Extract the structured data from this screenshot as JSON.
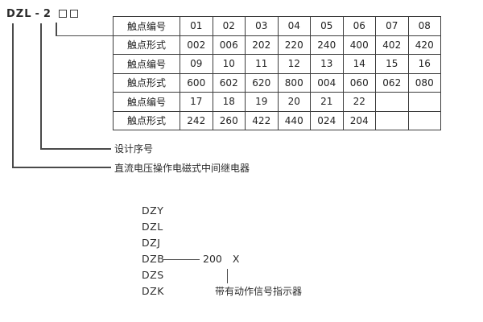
{
  "model_designation": {
    "prefix": "DZL",
    "separator": "-",
    "series": "2",
    "placeholder_count": 2
  },
  "contact_table": {
    "rows": [
      {
        "label": "触点编号",
        "values": [
          "01",
          "02",
          "03",
          "04",
          "05",
          "06",
          "07",
          "08"
        ]
      },
      {
        "label": "触点形式",
        "values": [
          "002",
          "006",
          "202",
          "220",
          "240",
          "400",
          "402",
          "420"
        ]
      },
      {
        "label": "触点编号",
        "values": [
          "09",
          "10",
          "11",
          "12",
          "13",
          "14",
          "15",
          "16"
        ]
      },
      {
        "label": "触点形式",
        "values": [
          "600",
          "602",
          "620",
          "800",
          "004",
          "060",
          "062",
          "080"
        ]
      },
      {
        "label": "触点编号",
        "values": [
          "17",
          "18",
          "19",
          "20",
          "21",
          "22",
          "",
          ""
        ]
      },
      {
        "label": "触点形式",
        "values": [
          "242",
          "260",
          "422",
          "440",
          "024",
          "204",
          "",
          ""
        ]
      }
    ]
  },
  "callouts": {
    "design_serial_label": "设计序号",
    "relay_type_label": "直流电压操作电磁式中间继电器"
  },
  "series_list": {
    "prefixes": [
      "DZY",
      "DZL",
      "DZJ",
      "DZB",
      "DZS",
      "DZK"
    ],
    "dzb_number": "200",
    "dzb_variable": "X",
    "variable_note": "带有动作信号指示器"
  },
  "colors": {
    "background": "#ffffff",
    "text": "#2b2b2b",
    "line": "#4a4a4a",
    "table_border": "#3c3c3c"
  }
}
